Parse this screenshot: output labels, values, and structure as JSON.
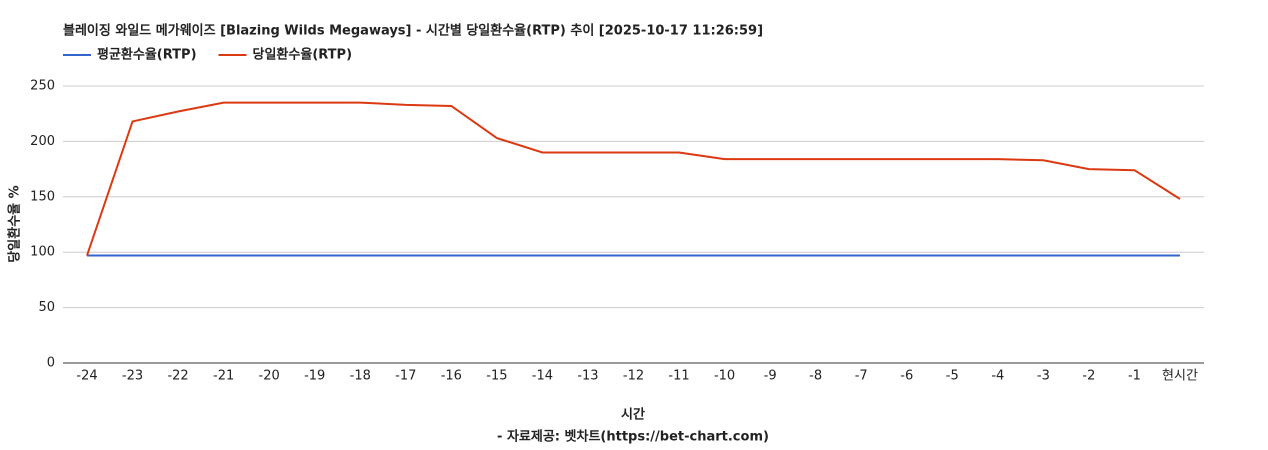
{
  "chart_data": {
    "type": "line",
    "title": "블레이징 와일드 메가웨이즈 [Blazing Wilds Megaways] - 시간별 당일환수율(RTP) 추이 [2025-10-17 11:26:59]",
    "x_label": "시간",
    "y_label": "당일환수율 %",
    "source": "- 자료제공: 벳차트(https://bet-chart.com)",
    "categories": [
      "-24",
      "-23",
      "-22",
      "-21",
      "-20",
      "-19",
      "-18",
      "-17",
      "-16",
      "-15",
      "-14",
      "-13",
      "-12",
      "-11",
      "-10",
      "-9",
      "-8",
      "-7",
      "-6",
      "-5",
      "-4",
      "-3",
      "-2",
      "-1",
      "현시간"
    ],
    "series": [
      {
        "name": "평균환수율(RTP)",
        "color": "#3366cc",
        "values": [
          97,
          97,
          97,
          97,
          97,
          97,
          97,
          97,
          97,
          97,
          97,
          97,
          97,
          97,
          97,
          97,
          97,
          97,
          97,
          97,
          97,
          97,
          97,
          97,
          97
        ]
      },
      {
        "name": "당일환수율(RTP)",
        "color": "#dc3912",
        "values": [
          97,
          218,
          227,
          235,
          235,
          235,
          235,
          233,
          232,
          203,
          190,
          190,
          190,
          190,
          184,
          184,
          184,
          184,
          184,
          184,
          184,
          183,
          175,
          174,
          148
        ]
      }
    ],
    "ylim": [
      0,
      250
    ],
    "yticks": [
      0,
      50,
      100,
      150,
      200,
      250
    ],
    "grid": true,
    "legend": "top-left"
  }
}
